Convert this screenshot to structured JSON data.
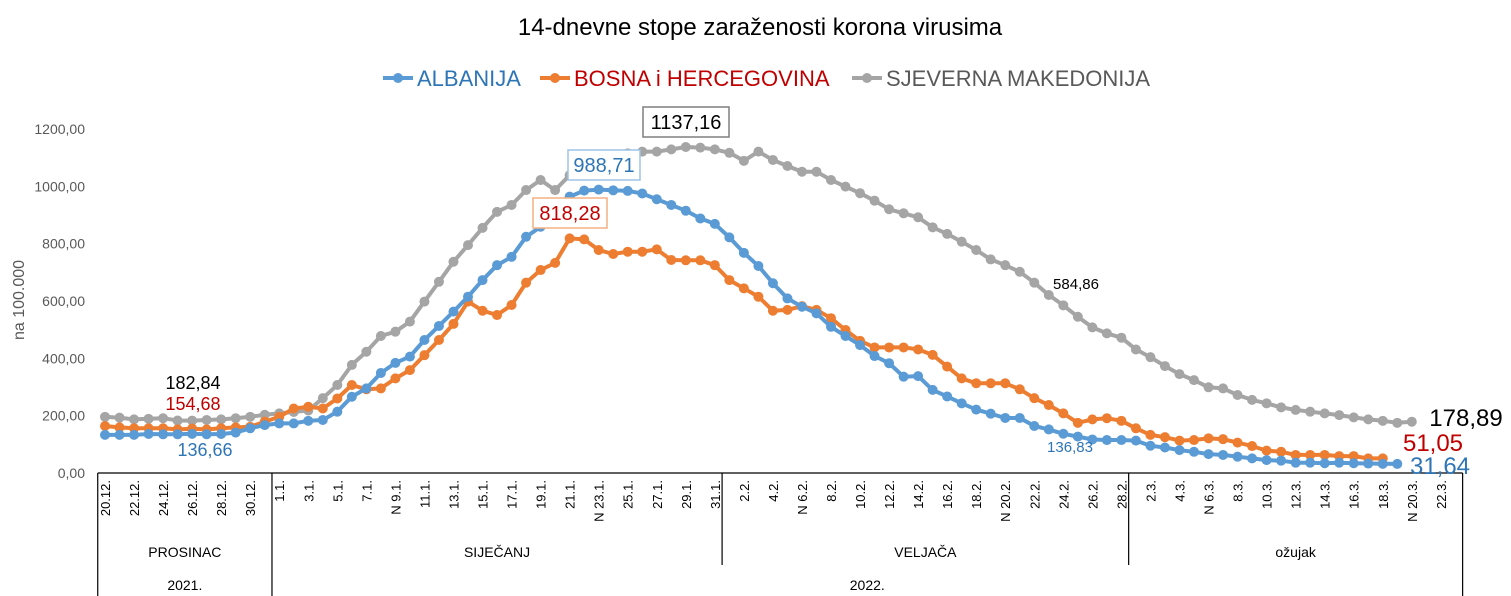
{
  "chart_data": {
    "type": "line",
    "title": "14-dnevne stope zaraženosti korona virusima",
    "ylabel": "na 100.000",
    "ylim": [
      0,
      1200
    ],
    "yticks": [
      "0,00",
      "200,00",
      "400,00",
      "600,00",
      "800,00",
      "1000,00",
      "1200,00"
    ],
    "grid": false,
    "legend_position": "top",
    "x_tick_labels": [
      "20.12.",
      "22.12.",
      "24.12.",
      "26.12.",
      "28.12.",
      "30.12.",
      "1.1.",
      "3.1.",
      "5.1.",
      "7.1.",
      "N 9.1.",
      "11.1.",
      "13.1.",
      "15.1.",
      "17.1.",
      "19.1.",
      "21.1.",
      "N 23.1.",
      "25.1.",
      "27.1.",
      "29.1.",
      "31.1.",
      "2.2.",
      "4.2.",
      "N 6.2.",
      "8.2.",
      "10.2.",
      "12.2.",
      "14.2.",
      "16.2.",
      "18.2.",
      "N 20.2.",
      "22.2.",
      "24.2.",
      "26.2.",
      "28.2.",
      "2.3.",
      "4.3.",
      "N 6.3.",
      "8.3.",
      "10.3.",
      "12.3.",
      "14.3.",
      "16.3.",
      "18.3.",
      "N 20.3.",
      "22.3."
    ],
    "months": [
      "PROSINAC",
      "SIJEČANJ",
      "VELJAČA",
      "ožujak"
    ],
    "years": [
      "2021.",
      "2022."
    ],
    "series": [
      {
        "name": "ALBANIJA",
        "color": "#5B9BD5",
        "label_color": "#2E75B6",
        "values": [
          133,
          133,
          133,
          136,
          135,
          135,
          136.66,
          135,
          136,
          141,
          156,
          167,
          173,
          173,
          182,
          185,
          214,
          266,
          295,
          349,
          384,
          406,
          464,
          513,
          563,
          615,
          673,
          725,
          754,
          824,
          859,
          910,
          964,
          985,
          988.71,
          986,
          984,
          975,
          955,
          935,
          915,
          888,
          869,
          822,
          768,
          722,
          662,
          609,
          580,
          557,
          510,
          478,
          446,
          408,
          383,
          336,
          338,
          290,
          267,
          243,
          221,
          207,
          192,
          192,
          164,
          152,
          136.83,
          127,
          117,
          115,
          115,
          113,
          95,
          89,
          80,
          74,
          66,
          63,
          57,
          51,
          45,
          43,
          36,
          36,
          34,
          36,
          34,
          33,
          32,
          31.64
        ]
      },
      {
        "name": "BOSNA i HERCEGOVINA",
        "color": "#ED7D31",
        "label_color": "#C00000",
        "values": [
          164,
          159,
          156,
          156,
          156,
          152,
          154.68,
          152,
          156,
          159,
          161,
          179,
          196,
          225,
          231,
          225,
          260,
          307,
          292,
          295,
          330,
          359,
          411,
          464,
          520,
          598,
          566,
          551,
          586,
          664,
          708,
          733,
          818.28,
          815,
          778,
          764,
          772,
          772,
          780,
          743,
          742,
          742,
          725,
          673,
          644,
          615,
          566,
          569,
          582,
          569,
          540,
          499,
          461,
          438,
          438,
          438,
          431,
          412,
          371,
          330,
          313,
          313,
          313,
          292,
          261,
          237,
          208,
          175,
          187,
          191,
          182,
          156,
          133,
          125,
          113,
          115,
          121,
          118,
          106,
          94,
          78,
          74,
          63,
          63,
          63,
          59,
          59,
          51,
          51.05
        ]
      },
      {
        "name": "SJEVERNA MAKEDONIJA",
        "color": "#A5A5A5",
        "label_color": "#595959",
        "values": [
          196,
          193,
          187,
          189,
          191,
          183,
          182.84,
          185,
          187,
          191,
          196,
          203,
          208,
          213,
          218,
          261,
          307,
          377,
          423,
          478,
          493,
          528,
          598,
          667,
          737,
          795,
          855,
          911,
          935,
          987,
          1022,
          987,
          1039,
          1075,
          1100,
          1110,
          1115,
          1121,
          1121,
          1129,
          1137.16,
          1135,
          1129,
          1117,
          1089,
          1121,
          1092,
          1071,
          1051,
          1051,
          1022,
          999,
          976,
          950,
          920,
          906,
          892,
          857,
          834,
          807,
          778,
          745,
          725,
          702,
          664,
          621,
          584.86,
          545,
          508,
          487,
          472,
          431,
          404,
          373,
          345,
          324,
          299,
          295,
          272,
          255,
          243,
          229,
          220,
          214,
          208,
          202,
          194,
          187,
          182,
          175,
          178.89
        ]
      }
    ],
    "data_labels": [
      {
        "series": "SJEVERNA MAKEDONIJA",
        "text": "182,84",
        "color": "#000000"
      },
      {
        "series": "BOSNA i HERCEGOVINA",
        "text": "154,68",
        "color": "#C00000"
      },
      {
        "series": "ALBANIJA",
        "text": "136,66",
        "color": "#2E75B6"
      },
      {
        "series": "ALBANIJA",
        "text": "988,71",
        "color": "#2E75B6",
        "boxed": true,
        "border": "#9DC3E6"
      },
      {
        "series": "BOSNA i HERCEGOVINA",
        "text": "818,28",
        "color": "#C00000",
        "boxed": true,
        "border": "#F4B183"
      },
      {
        "series": "SJEVERNA MAKEDONIJA",
        "text": "1137,16",
        "color": "#000000",
        "boxed": true,
        "border": "#7F7F7F"
      },
      {
        "series": "SJEVERNA MAKEDONIJA",
        "text": "584,86",
        "color": "#000000"
      },
      {
        "series": "ALBANIJA",
        "text": "136,83",
        "color": "#2E75B6"
      },
      {
        "series": "SJEVERNA MAKEDONIJA",
        "text": "178,89",
        "color": "#000000"
      },
      {
        "series": "BOSNA i HERCEGOVINA",
        "text": "51,05",
        "color": "#C00000"
      },
      {
        "series": "ALBANIJA",
        "text": "31,64",
        "color": "#2E75B6"
      }
    ]
  }
}
